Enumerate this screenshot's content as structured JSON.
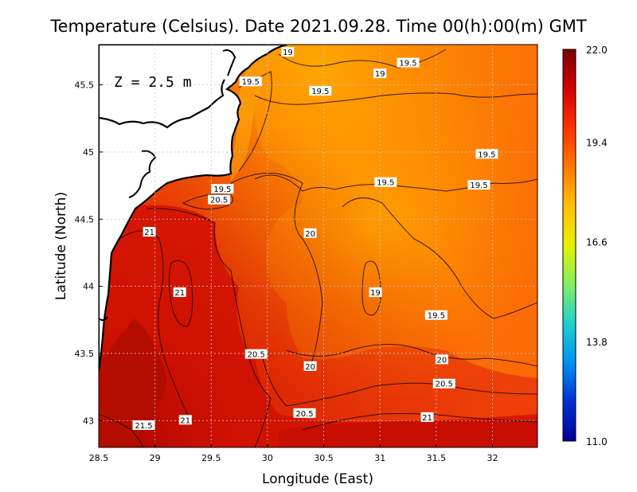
{
  "chart_data": {
    "type": "heatmap",
    "title": "Temperature (Celsius). Date 2021.09.28. Time 00(h):00(m)  GMT",
    "xlabel": "Longitude (East)",
    "ylabel": "Latitude (North)",
    "xlim": [
      28.5,
      32.4
    ],
    "ylim": [
      42.8,
      45.8
    ],
    "x_ticks": [
      28.5,
      29,
      29.5,
      30,
      30.5,
      31,
      31.5,
      32
    ],
    "x_tick_labels": [
      "28.5",
      "29",
      "29.5",
      "30",
      "30.5",
      "31",
      "31.5",
      "32"
    ],
    "y_ticks": [
      43,
      43.5,
      44,
      44.5,
      45,
      45.5
    ],
    "y_tick_labels": [
      "43",
      "43.5",
      "44",
      "44.5",
      "45",
      "45.5"
    ],
    "grid": true,
    "depth_label": "Z = 2.5 m",
    "colorbar": {
      "min": 11.0,
      "max": 22.0,
      "tick_values": [
        22.0,
        19.4,
        16.6,
        13.8,
        11.0
      ],
      "tick_labels": [
        "22.0",
        "19.4",
        "16.6",
        "13.8",
        "11.0"
      ],
      "colors": [
        "#7a0000",
        "#d40000",
        "#ff3000",
        "#ff7a00",
        "#ffc000",
        "#e8f000",
        "#80f060",
        "#20d0d0",
        "#0090f0",
        "#0030d0",
        "#00009a"
      ]
    },
    "contour_labels": [
      {
        "text": "19",
        "lon": 30.18,
        "lat": 45.74
      },
      {
        "text": "19.5",
        "lon": 31.25,
        "lat": 45.66
      },
      {
        "text": "19",
        "lon": 31.0,
        "lat": 45.58
      },
      {
        "text": "19.5",
        "lon": 29.85,
        "lat": 45.52
      },
      {
        "text": "19.5",
        "lon": 30.47,
        "lat": 45.45
      },
      {
        "text": "19.5",
        "lon": 31.95,
        "lat": 44.98
      },
      {
        "text": "19.5",
        "lon": 31.05,
        "lat": 44.77
      },
      {
        "text": "19.5",
        "lon": 31.88,
        "lat": 44.75
      },
      {
        "text": "19.5",
        "lon": 29.6,
        "lat": 44.72
      },
      {
        "text": "20.5",
        "lon": 29.57,
        "lat": 44.64
      },
      {
        "text": "21",
        "lon": 28.95,
        "lat": 44.4
      },
      {
        "text": "20",
        "lon": 30.38,
        "lat": 44.39
      },
      {
        "text": "21",
        "lon": 29.22,
        "lat": 43.95
      },
      {
        "text": "19",
        "lon": 30.96,
        "lat": 43.95
      },
      {
        "text": "19.5",
        "lon": 31.5,
        "lat": 43.78
      },
      {
        "text": "20.5",
        "lon": 29.9,
        "lat": 43.49
      },
      {
        "text": "20",
        "lon": 31.55,
        "lat": 43.45
      },
      {
        "text": "20",
        "lon": 30.38,
        "lat": 43.4
      },
      {
        "text": "20.5",
        "lon": 31.57,
        "lat": 43.27
      },
      {
        "text": "20.5",
        "lon": 30.33,
        "lat": 43.05
      },
      {
        "text": "21",
        "lon": 31.42,
        "lat": 43.02
      },
      {
        "text": "21",
        "lon": 29.27,
        "lat": 43.0
      },
      {
        "text": "21.5",
        "lon": 28.9,
        "lat": 42.96
      }
    ]
  }
}
